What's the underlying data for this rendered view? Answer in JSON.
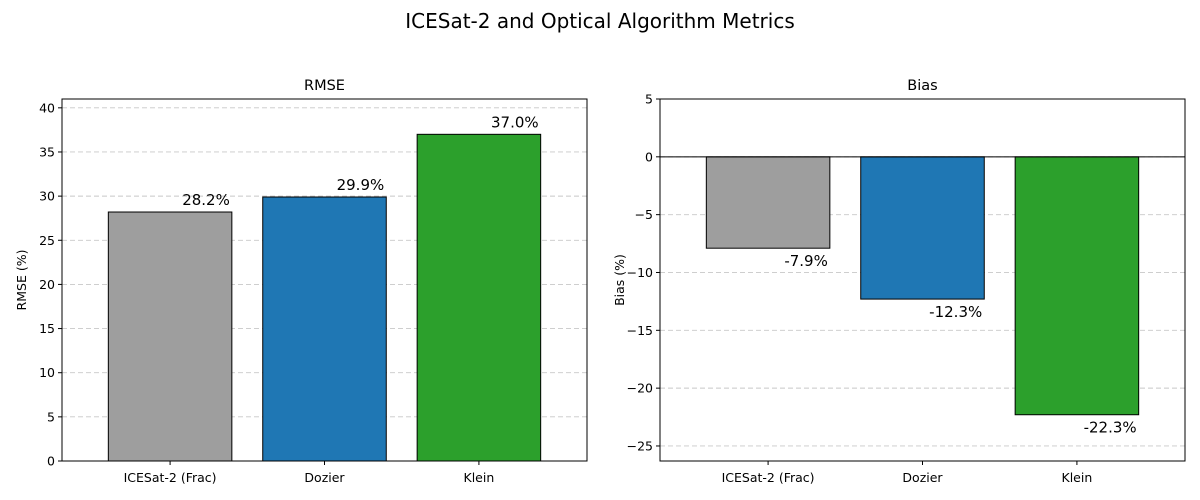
{
  "figure": {
    "title": "ICESat-2 and Optical Algorithm Metrics"
  },
  "chart_data": [
    {
      "type": "bar",
      "title": "RMSE",
      "xlabel": "",
      "ylabel": "RMSE (%)",
      "categories": [
        "ICESat-2 (Frac)",
        "Dozier",
        "Klein"
      ],
      "values": [
        28.2,
        29.9,
        37.0
      ],
      "data_labels": [
        "28.2%",
        "29.9%",
        "37.0%"
      ],
      "colors": [
        "#9e9e9e",
        "#1f77b4",
        "#2ca02c"
      ],
      "ylim": [
        0,
        41
      ],
      "yticks": [
        0,
        5,
        10,
        15,
        20,
        25,
        30,
        35,
        40
      ],
      "grid": "y-dashed",
      "zero_line": false
    },
    {
      "type": "bar",
      "title": "Bias",
      "xlabel": "",
      "ylabel": "Bias (%)",
      "categories": [
        "ICESat-2 (Frac)",
        "Dozier",
        "Klein"
      ],
      "values": [
        -7.9,
        -12.3,
        -22.3
      ],
      "data_labels": [
        "-7.9%",
        "-12.3%",
        "-22.3%"
      ],
      "colors": [
        "#9e9e9e",
        "#1f77b4",
        "#2ca02c"
      ],
      "ylim": [
        -26.3,
        5
      ],
      "yticks": [
        5,
        0,
        -5,
        -10,
        -15,
        -20,
        -25
      ],
      "ytick_labels": [
        "5",
        "0",
        "−5",
        "−10",
        "−15",
        "−20",
        "−25"
      ],
      "grid": "y-dashed",
      "zero_line": true
    }
  ]
}
